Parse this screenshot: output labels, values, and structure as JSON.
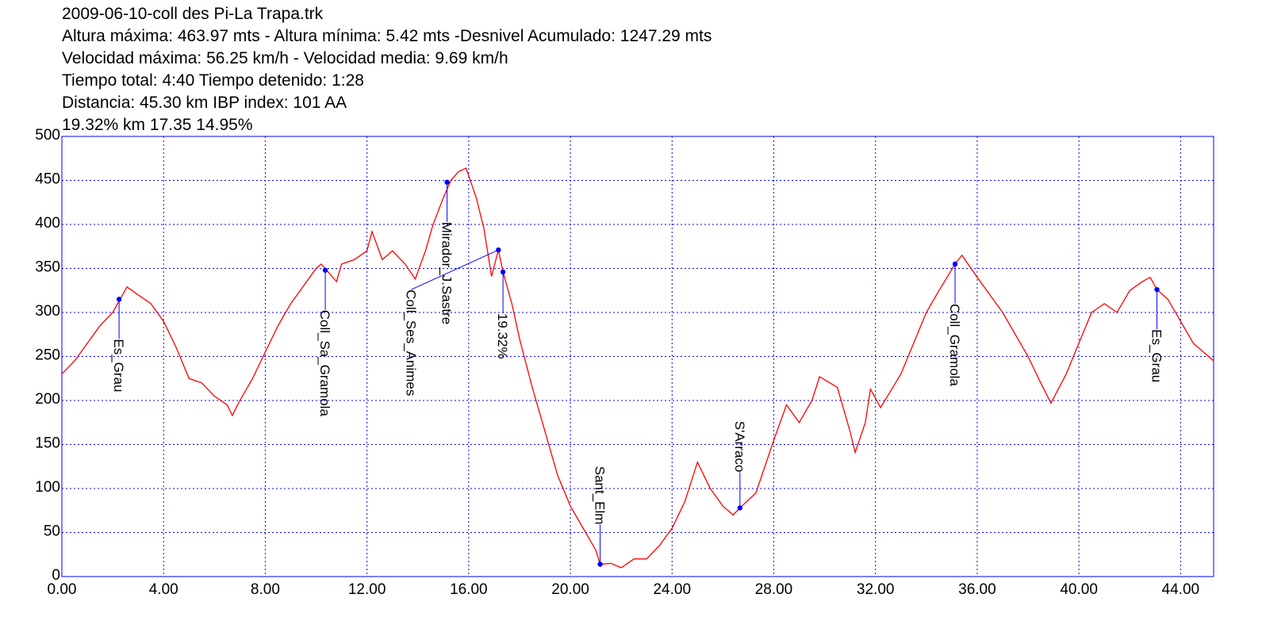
{
  "chart_data": {
    "type": "line",
    "title": "2009-06-10-coll des Pi-La Trapa.trk",
    "info_lines": [
      "Altura máxima: 463.97 mts - Altura mínima: 5.42 mts -Desnivel Acumulado: 1247.29 mts",
      "Velocidad máxima: 56.25 km/h - Velocidad media: 9.69 km/h",
      "Tiempo total: 4:40  Tiempo detenido: 1:28",
      "Distancia: 45.30 km IBP index: 101 AA",
      "19.32% km 17.35  14.95%"
    ],
    "x": [
      0,
      0.5,
      1,
      1.5,
      2,
      2.56,
      3,
      3.5,
      4,
      4.5,
      5,
      5.5,
      6,
      6.5,
      6.7,
      7,
      7.5,
      8,
      8.5,
      9,
      9.5,
      10,
      10.2,
      10.5,
      10.8,
      11,
      11.5,
      12,
      12.2,
      12.6,
      13,
      13.5,
      13.9,
      14.3,
      14.6,
      15,
      15.3,
      15.6,
      15.9,
      16.3,
      16.6,
      16.9,
      17.17,
      17.35,
      17.7,
      18,
      18.5,
      19,
      19.5,
      20,
      20.5,
      21,
      21.17,
      21.6,
      22,
      22.5,
      23,
      23.5,
      24,
      24.5,
      25,
      25.5,
      26,
      26.4,
      26.67,
      27.3,
      28,
      28.5,
      29,
      29.5,
      29.8,
      30.5,
      31,
      31.2,
      31.6,
      31.8,
      32.2,
      33,
      33.5,
      34,
      34.5,
      35.13,
      35.4,
      36,
      37,
      38,
      38.5,
      38.9,
      39.5,
      40,
      40.5,
      41,
      41.5,
      42,
      42.5,
      42.8,
      43.07,
      43.5,
      44,
      44.5,
      45.3
    ],
    "values": [
      230,
      245,
      265,
      285,
      300,
      329,
      320,
      310,
      290,
      260,
      225,
      220,
      205,
      195,
      183,
      200,
      225,
      255,
      285,
      310,
      330,
      350,
      355,
      345,
      335,
      355,
      360,
      370,
      392,
      360,
      370,
      355,
      338,
      370,
      400,
      430,
      450,
      460,
      464,
      430,
      395,
      341,
      371,
      346,
      310,
      270,
      215,
      165,
      115,
      80,
      55,
      30,
      14,
      15,
      10,
      20,
      20,
      35,
      55,
      85,
      130,
      100,
      80,
      70,
      78,
      95,
      155,
      195,
      175,
      200,
      227,
      215,
      165,
      141,
      175,
      213,
      192,
      230,
      265,
      300,
      325,
      355,
      365,
      340,
      300,
      250,
      220,
      197,
      230,
      265,
      300,
      310,
      300,
      325,
      335,
      340,
      326,
      315,
      290,
      265,
      245
    ],
    "color": "#ff0000",
    "waypoints": {
      "labels": [
        "Es_Grau",
        "Coll_Sa_Gramola",
        "Mirador_J.Sastre",
        "Coll_Ses_Animes",
        "19.32%",
        "Sant_Elm",
        "S'Arraco",
        "Coll_Gramola",
        "Es_Grau"
      ],
      "x": [
        2.25,
        10.36,
        15.15,
        17.17,
        17.35,
        21.17,
        26.67,
        35.13,
        43.07
      ],
      "values": [
        315,
        348,
        448,
        371,
        346,
        14,
        78,
        355,
        326
      ],
      "color": "#0000ff"
    },
    "xlim": [
      0,
      45.3
    ],
    "ylim": [
      0,
      500
    ],
    "xticks": [
      {
        "value": 0,
        "label": "0.00"
      },
      {
        "value": 4,
        "label": "4.00"
      },
      {
        "value": 8,
        "label": "8.00"
      },
      {
        "value": 12,
        "label": "12.00"
      },
      {
        "value": 16,
        "label": "16.00"
      },
      {
        "value": 20,
        "label": "20.00"
      },
      {
        "value": 24,
        "label": "24.00"
      },
      {
        "value": 28,
        "label": "28.00"
      },
      {
        "value": 32,
        "label": "32.00"
      },
      {
        "value": 36,
        "label": "36.00"
      },
      {
        "value": 40,
        "label": "40.00"
      },
      {
        "value": 44,
        "label": "44.00"
      }
    ],
    "yticks": [
      0,
      50,
      100,
      150,
      200,
      250,
      300,
      350,
      400,
      450,
      500
    ],
    "grid": true
  }
}
